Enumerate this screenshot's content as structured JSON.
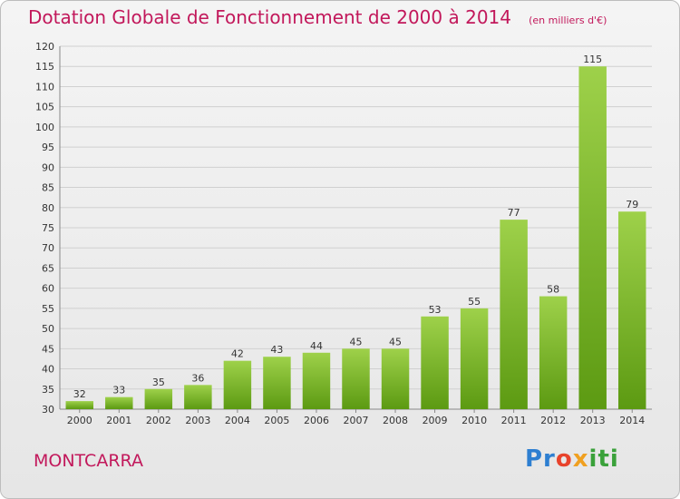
{
  "header": {
    "title": "Dotation Globale de Fonctionnement de 2000 à 2014",
    "subtitle": "(en milliers d'€)"
  },
  "footer": {
    "place": "MONTCARRA",
    "logo": {
      "brand_name": "Proxiti",
      "parts": [
        "Pr",
        "o",
        "x",
        "iti"
      ]
    }
  },
  "colors": {
    "title": "#c2185b",
    "bar_light": "#9ed14a",
    "bar_dark": "#5c9a12",
    "gridline": "#d0d0d0",
    "axis_text": "#333333"
  },
  "chart_data": {
    "type": "bar",
    "title": "Dotation Globale de Fonctionnement de 2000 à 2014",
    "subtitle": "(en milliers d'€)",
    "categories": [
      "2000",
      "2001",
      "2002",
      "2003",
      "2004",
      "2005",
      "2006",
      "2007",
      "2008",
      "2009",
      "2010",
      "2011",
      "2012",
      "2013",
      "2014"
    ],
    "values": [
      32,
      33,
      35,
      36,
      42,
      43,
      44,
      45,
      45,
      53,
      55,
      77,
      58,
      115,
      79
    ],
    "ylim": [
      30,
      120
    ],
    "yticks": [
      30,
      35,
      40,
      45,
      50,
      55,
      60,
      65,
      70,
      75,
      80,
      85,
      90,
      95,
      100,
      105,
      110,
      115,
      120
    ],
    "grid": true,
    "legend": "none"
  }
}
